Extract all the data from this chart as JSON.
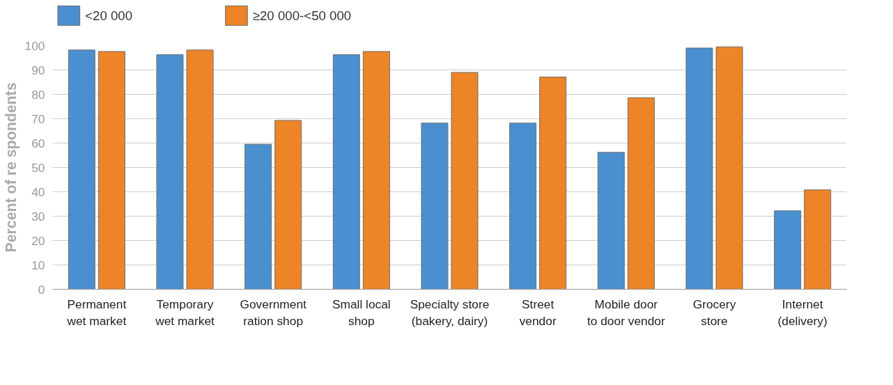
{
  "chart_data": {
    "type": "bar",
    "ylabel": "Percent of re spondents",
    "categories": [
      "Permanent\nwet market",
      "Temporary\nwet market",
      "Government\nration shop",
      "Small local\nshop",
      "Specialty store\n(bakery, dairy)",
      "Street\nvendor",
      "Mobile door\nto door vendor",
      "Grocery\nstore",
      "Internet\n(delivery)"
    ],
    "series": [
      {
        "name": "<20 000",
        "color": "#4a8fd0",
        "values": [
          98.2,
          96.3,
          59.5,
          96.3,
          68.2,
          68.2,
          56.2,
          99,
          32.2
        ]
      },
      {
        "name": "≥20 000-<50 000",
        "color": "#ed8427",
        "values": [
          97.6,
          98.2,
          69.3,
          97.6,
          89,
          87.1,
          78.6,
          99.5,
          40.8
        ]
      }
    ],
    "ylim": [
      0,
      100
    ],
    "yticks": [
      0,
      10,
      20,
      30,
      40,
      50,
      60,
      70,
      80,
      90,
      100
    ],
    "grid": "y",
    "legend": "top left"
  }
}
